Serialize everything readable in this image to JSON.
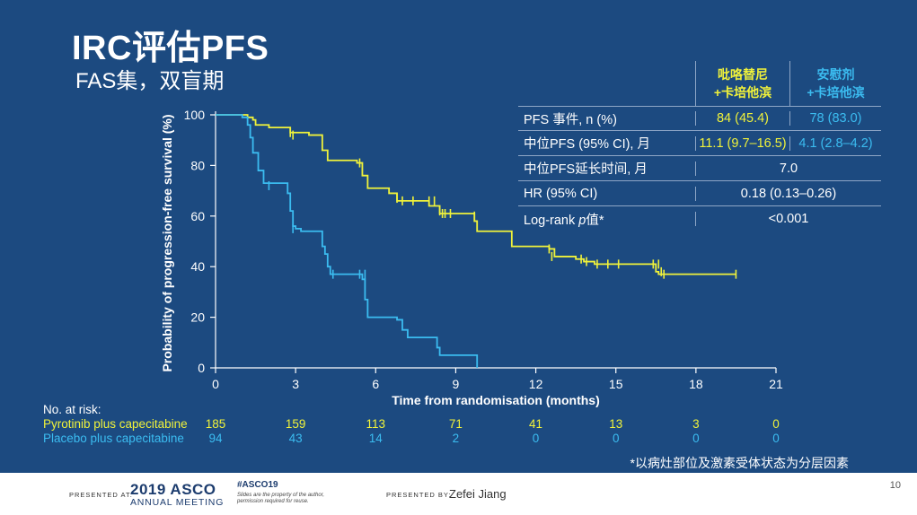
{
  "slide": {
    "title": "IRC评估PFS",
    "subtitle": "FAS集，双盲期",
    "footnote": "*以病灶部位及激素受体状态为分层因素"
  },
  "summary_table": {
    "arm_a_header_line1": "吡咯替尼",
    "arm_a_header_line2": "+卡培他滨",
    "arm_b_header_line1": "安慰剂",
    "arm_b_header_line2": "+卡培他滨",
    "rows": [
      {
        "label": "PFS 事件, n (%)",
        "a": "84 (45.4)",
        "b": "78 (83.0)"
      },
      {
        "label": "中位PFS (95% CI), 月",
        "a": "11.1 (9.7–16.5)",
        "b": "4.1 (2.8–4.2)"
      }
    ],
    "merged_rows": [
      {
        "label": "中位PFS延长时间, 月",
        "value": "7.0"
      },
      {
        "label": "HR (95% CI)",
        "value": "0.18 (0.13–0.26)"
      }
    ],
    "logrank_label_pre": "Log-rank ",
    "logrank_label_p": "p",
    "logrank_label_post": "值*",
    "logrank_value": "<0.001"
  },
  "risk_table": {
    "title": "No. at risk:",
    "rows": [
      {
        "label": "Pyrotinib plus capecitabine",
        "color": "#f0f23a",
        "values": [
          "185",
          "159",
          "113",
          "71",
          "41",
          "13",
          "3",
          "0"
        ]
      },
      {
        "label": "Placebo plus capecitabine",
        "color": "#3bbcf0",
        "values": [
          "94",
          "43",
          "14",
          "2",
          "0",
          "0",
          "0",
          "0"
        ]
      }
    ]
  },
  "footer": {
    "presented_at": "PRESENTED AT:",
    "asco_year": "2019 ASCO",
    "asco_sub": "ANNUAL MEETING",
    "hashtag": "#ASCO19",
    "disclaimer": "Slides are the property of the author, permission required for reuse.",
    "presented_by": "PRESENTED BY:",
    "presenter": "Zefei Jiang",
    "page_number": "10"
  },
  "chart_data": {
    "type": "line",
    "subtype": "kaplan-meier-step",
    "xlabel": "Time from randomisation (months)",
    "ylabel": "Probability of progression-free survival (%)",
    "xlim": [
      0,
      21
    ],
    "ylim": [
      0,
      100
    ],
    "xticks": [
      0,
      3,
      6,
      9,
      12,
      15,
      18,
      21
    ],
    "yticks": [
      0,
      20,
      40,
      60,
      80,
      100
    ],
    "series": [
      {
        "name": "Pyrotinib plus capecitabine",
        "color": "#f0f23a",
        "steps": [
          [
            0,
            100
          ],
          [
            1.2,
            99
          ],
          [
            1.4,
            98
          ],
          [
            1.5,
            96
          ],
          [
            2,
            95
          ],
          [
            2.8,
            93
          ],
          [
            3.5,
            92
          ],
          [
            4,
            86
          ],
          [
            4.2,
            82
          ],
          [
            5.3,
            81
          ],
          [
            5.5,
            76
          ],
          [
            5.7,
            71
          ],
          [
            6.5,
            69
          ],
          [
            6.8,
            66
          ],
          [
            8,
            64
          ],
          [
            8.4,
            61
          ],
          [
            9.7,
            58
          ],
          [
            9.8,
            54
          ],
          [
            11.1,
            51
          ],
          [
            11.1,
            48
          ],
          [
            12.5,
            47
          ],
          [
            12.7,
            44
          ],
          [
            13.5,
            43
          ],
          [
            13.8,
            42
          ],
          [
            14.2,
            41
          ],
          [
            16.5,
            38
          ],
          [
            16.6,
            37
          ],
          [
            19.5,
            37
          ]
        ],
        "censors": [
          [
            2.8,
            93
          ],
          [
            2.9,
            92
          ],
          [
            5.4,
            81
          ],
          [
            6.8,
            67
          ],
          [
            7,
            66
          ],
          [
            7.4,
            66
          ],
          [
            8,
            66
          ],
          [
            8.2,
            66
          ],
          [
            8.4,
            62
          ],
          [
            8.5,
            61
          ],
          [
            8.6,
            61
          ],
          [
            8.8,
            61
          ],
          [
            9.7,
            60
          ],
          [
            12.5,
            47
          ],
          [
            12.6,
            44
          ],
          [
            13.7,
            43
          ],
          [
            13.9,
            42
          ],
          [
            14.3,
            41
          ],
          [
            14.7,
            41
          ],
          [
            15.1,
            41
          ],
          [
            16.4,
            41
          ],
          [
            16.6,
            41
          ],
          [
            16.7,
            38
          ],
          [
            16.8,
            37
          ],
          [
            19.5,
            37
          ]
        ]
      },
      {
        "name": "Placebo plus capecitabine",
        "color": "#3bbcf0",
        "steps": [
          [
            0,
            100
          ],
          [
            1,
            99
          ],
          [
            1.2,
            96
          ],
          [
            1.3,
            91
          ],
          [
            1.4,
            85
          ],
          [
            1.6,
            78
          ],
          [
            1.8,
            73
          ],
          [
            2.7,
            69
          ],
          [
            2.8,
            62
          ],
          [
            2.9,
            56
          ],
          [
            3,
            55
          ],
          [
            3.2,
            54
          ],
          [
            4,
            48
          ],
          [
            4.1,
            45
          ],
          [
            4.2,
            40
          ],
          [
            4.3,
            37
          ],
          [
            5.5,
            35
          ],
          [
            5.6,
            27
          ],
          [
            5.7,
            20
          ],
          [
            6.8,
            19
          ],
          [
            7,
            15
          ],
          [
            7.2,
            12
          ],
          [
            8.3,
            8
          ],
          [
            8.4,
            5
          ],
          [
            9.8,
            0
          ]
        ],
        "censors": [
          [
            2,
            72
          ],
          [
            2.9,
            55
          ],
          [
            4.4,
            37
          ],
          [
            5.4,
            37
          ],
          [
            5.6,
            37
          ]
        ]
      }
    ]
  }
}
